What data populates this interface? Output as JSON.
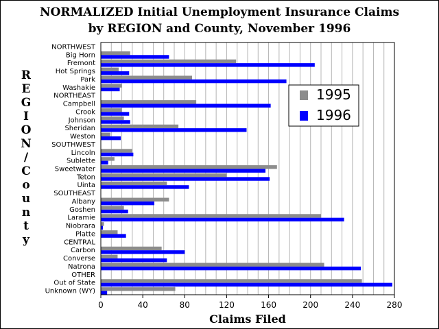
{
  "chart_data": {
    "type": "bar",
    "orientation": "horizontal",
    "title_line1": "NORMALIZED Initial Unemployment Insurance Claims",
    "title_line2": "by REGION and County, November 1996",
    "xlabel": "Claims Filed",
    "ylabel": "REGION/County",
    "xlim": [
      0,
      280
    ],
    "xticks": [
      0,
      40,
      80,
      120,
      160,
      200,
      240,
      280
    ],
    "grid": "vertical",
    "legend_position": "right",
    "colors": {
      "1995": "#8c8c8c",
      "1996": "#0000ff"
    },
    "categories": [
      "NORTHWEST",
      "Big Horn",
      "Fremont",
      "Hot Springs",
      "Park",
      "Washakie",
      "NORTHEAST",
      "Campbell",
      "Crook",
      "Johnson",
      "Sheridan",
      "Weston",
      "SOUTHWEST",
      "Lincoln",
      "Sublette",
      "Sweetwater",
      "Teton",
      "Uinta",
      "SOUTHEAST",
      "Albany",
      "Goshen",
      "Laramie",
      "Niobrara",
      "Platte",
      "CENTRAL",
      "Carbon",
      "Converse",
      "Natrona",
      "OTHER",
      "Out of State",
      "Unknown (WY)"
    ],
    "series": [
      {
        "name": "1995",
        "values": [
          null,
          28,
          129,
          17,
          87,
          20,
          null,
          91,
          20,
          22,
          74,
          9,
          null,
          30,
          13,
          168,
          120,
          63,
          null,
          65,
          22,
          210,
          3,
          16,
          null,
          58,
          16,
          213,
          null,
          249,
          71
        ]
      },
      {
        "name": "1996",
        "values": [
          null,
          65,
          204,
          27,
          177,
          18,
          null,
          162,
          27,
          28,
          139,
          19,
          null,
          31,
          7,
          157,
          161,
          84,
          null,
          51,
          26,
          232,
          2,
          24,
          null,
          80,
          63,
          248,
          null,
          278,
          6
        ]
      }
    ]
  }
}
